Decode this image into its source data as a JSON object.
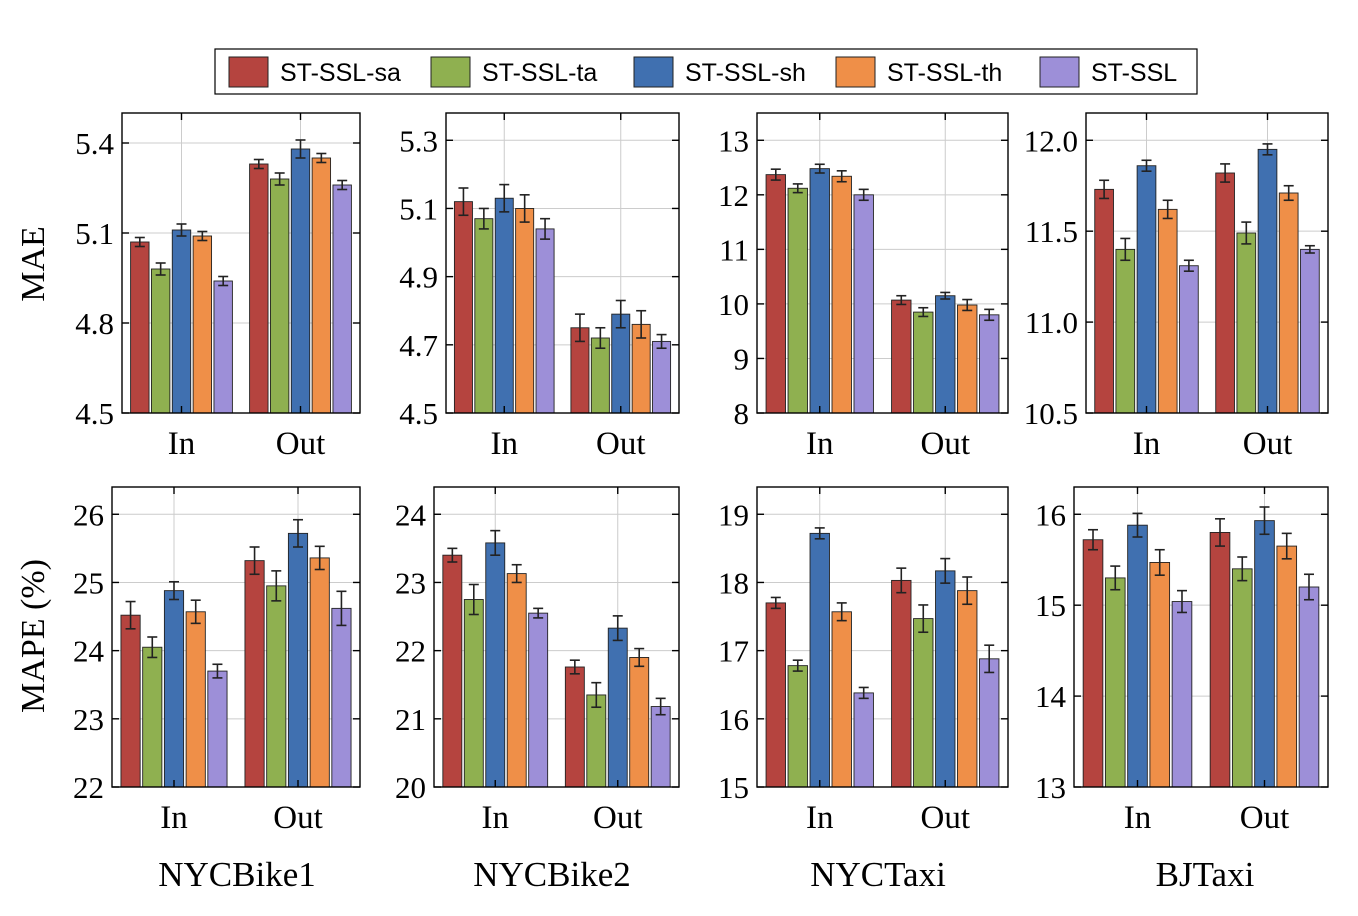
{
  "legend": {
    "entries": [
      {
        "name": "ST-SSL-sa",
        "color": "#b5443f"
      },
      {
        "name": "ST-SSL-ta",
        "color": "#8fb050"
      },
      {
        "name": "ST-SSL-sh",
        "color": "#4070b0"
      },
      {
        "name": "ST-SSL-th",
        "color": "#ef8f48"
      },
      {
        "name": "ST-SSL",
        "color": "#9d8fd8"
      }
    ]
  },
  "row_labels": [
    "MAE",
    "MAPE (%)"
  ],
  "dataset_labels": [
    "NYCBike1",
    "NYCBike2",
    "NYCTaxi",
    "BJTaxi"
  ],
  "chart_data": [
    {
      "type": "bar",
      "dataset": "NYCBike1",
      "ylabel": "MAE",
      "categories": [
        "In",
        "Out"
      ],
      "ylim": [
        4.5,
        5.5
      ],
      "yticks": [
        "4.5",
        "4.8",
        "5.1",
        "5.4"
      ],
      "grid": true,
      "series": [
        {
          "name": "ST-SSL-sa",
          "values": [
            5.07,
            5.33
          ],
          "errors": [
            0.015,
            0.015
          ]
        },
        {
          "name": "ST-SSL-ta",
          "values": [
            4.98,
            5.28
          ],
          "errors": [
            0.02,
            0.02
          ]
        },
        {
          "name": "ST-SSL-sh",
          "values": [
            5.11,
            5.38
          ],
          "errors": [
            0.02,
            0.03
          ]
        },
        {
          "name": "ST-SSL-th",
          "values": [
            5.09,
            5.35
          ],
          "errors": [
            0.015,
            0.015
          ]
        },
        {
          "name": "ST-SSL",
          "values": [
            4.94,
            5.26
          ],
          "errors": [
            0.015,
            0.015
          ]
        }
      ]
    },
    {
      "type": "bar",
      "dataset": "NYCBike2",
      "categories": [
        "In",
        "Out"
      ],
      "ylim": [
        4.5,
        5.38
      ],
      "yticks": [
        "4.5",
        "4.7",
        "4.9",
        "5.1",
        "5.3"
      ],
      "grid": true,
      "series": [
        {
          "name": "ST-SSL-sa",
          "values": [
            5.12,
            4.75
          ],
          "errors": [
            0.04,
            0.04
          ]
        },
        {
          "name": "ST-SSL-ta",
          "values": [
            5.07,
            4.72
          ],
          "errors": [
            0.03,
            0.03
          ]
        },
        {
          "name": "ST-SSL-sh",
          "values": [
            5.13,
            4.79
          ],
          "errors": [
            0.04,
            0.04
          ]
        },
        {
          "name": "ST-SSL-th",
          "values": [
            5.1,
            4.76
          ],
          "errors": [
            0.04,
            0.04
          ]
        },
        {
          "name": "ST-SSL",
          "values": [
            5.04,
            4.71
          ],
          "errors": [
            0.03,
            0.02
          ]
        }
      ]
    },
    {
      "type": "bar",
      "dataset": "NYCTaxi",
      "categories": [
        "In",
        "Out"
      ],
      "ylim": [
        8,
        13.5
      ],
      "yticks": [
        "8",
        "9",
        "10",
        "11",
        "12",
        "13"
      ],
      "grid": true,
      "series": [
        {
          "name": "ST-SSL-sa",
          "values": [
            12.37,
            10.07
          ],
          "errors": [
            0.1,
            0.08
          ]
        },
        {
          "name": "ST-SSL-ta",
          "values": [
            12.12,
            9.85
          ],
          "errors": [
            0.08,
            0.08
          ]
        },
        {
          "name": "ST-SSL-sh",
          "values": [
            12.48,
            10.15
          ],
          "errors": [
            0.08,
            0.06
          ]
        },
        {
          "name": "ST-SSL-th",
          "values": [
            12.34,
            9.98
          ],
          "errors": [
            0.1,
            0.1
          ]
        },
        {
          "name": "ST-SSL",
          "values": [
            12.0,
            9.8
          ],
          "errors": [
            0.1,
            0.1
          ]
        }
      ]
    },
    {
      "type": "bar",
      "dataset": "BJTaxi",
      "categories": [
        "In",
        "Out"
      ],
      "ylim": [
        10.5,
        12.15
      ],
      "yticks": [
        "10.5",
        "11.0",
        "11.5",
        "12.0"
      ],
      "grid": true,
      "series": [
        {
          "name": "ST-SSL-sa",
          "values": [
            11.73,
            11.82
          ],
          "errors": [
            0.05,
            0.05
          ]
        },
        {
          "name": "ST-SSL-ta",
          "values": [
            11.4,
            11.49
          ],
          "errors": [
            0.06,
            0.06
          ]
        },
        {
          "name": "ST-SSL-sh",
          "values": [
            11.86,
            11.95
          ],
          "errors": [
            0.03,
            0.03
          ]
        },
        {
          "name": "ST-SSL-th",
          "values": [
            11.62,
            11.71
          ],
          "errors": [
            0.05,
            0.04
          ]
        },
        {
          "name": "ST-SSL",
          "values": [
            11.31,
            11.4
          ],
          "errors": [
            0.03,
            0.02
          ]
        }
      ]
    },
    {
      "type": "bar",
      "dataset": "NYCBike1",
      "ylabel": "MAPE (%)",
      "categories": [
        "In",
        "Out"
      ],
      "ylim": [
        22,
        26.4
      ],
      "yticks": [
        "22",
        "23",
        "24",
        "25",
        "26"
      ],
      "grid": true,
      "series": [
        {
          "name": "ST-SSL-sa",
          "values": [
            24.52,
            25.32
          ],
          "errors": [
            0.2,
            0.2
          ]
        },
        {
          "name": "ST-SSL-ta",
          "values": [
            24.05,
            24.95
          ],
          "errors": [
            0.15,
            0.22
          ]
        },
        {
          "name": "ST-SSL-sh",
          "values": [
            24.88,
            25.72
          ],
          "errors": [
            0.13,
            0.2
          ]
        },
        {
          "name": "ST-SSL-th",
          "values": [
            24.57,
            25.36
          ],
          "errors": [
            0.17,
            0.17
          ]
        },
        {
          "name": "ST-SSL",
          "values": [
            23.7,
            24.62
          ],
          "errors": [
            0.1,
            0.25
          ]
        }
      ]
    },
    {
      "type": "bar",
      "dataset": "NYCBike2",
      "categories": [
        "In",
        "Out"
      ],
      "ylim": [
        20,
        24.4
      ],
      "yticks": [
        "20",
        "21",
        "22",
        "23",
        "24"
      ],
      "grid": true,
      "series": [
        {
          "name": "ST-SSL-sa",
          "values": [
            23.4,
            21.76
          ],
          "errors": [
            0.1,
            0.1
          ]
        },
        {
          "name": "ST-SSL-ta",
          "values": [
            22.75,
            21.35
          ],
          "errors": [
            0.22,
            0.18
          ]
        },
        {
          "name": "ST-SSL-sh",
          "values": [
            23.58,
            22.33
          ],
          "errors": [
            0.18,
            0.18
          ]
        },
        {
          "name": "ST-SSL-th",
          "values": [
            23.13,
            21.9
          ],
          "errors": [
            0.13,
            0.13
          ]
        },
        {
          "name": "ST-SSL",
          "values": [
            22.55,
            21.18
          ],
          "errors": [
            0.07,
            0.12
          ]
        }
      ]
    },
    {
      "type": "bar",
      "dataset": "NYCTaxi",
      "categories": [
        "In",
        "Out"
      ],
      "ylim": [
        15,
        19.4
      ],
      "yticks": [
        "15",
        "16",
        "17",
        "18",
        "19"
      ],
      "grid": true,
      "series": [
        {
          "name": "ST-SSL-sa",
          "values": [
            17.7,
            18.03
          ],
          "errors": [
            0.08,
            0.18
          ]
        },
        {
          "name": "ST-SSL-ta",
          "values": [
            16.78,
            17.47
          ],
          "errors": [
            0.08,
            0.2
          ]
        },
        {
          "name": "ST-SSL-sh",
          "values": [
            18.72,
            18.17
          ],
          "errors": [
            0.08,
            0.18
          ]
        },
        {
          "name": "ST-SSL-th",
          "values": [
            17.57,
            17.88
          ],
          "errors": [
            0.13,
            0.2
          ]
        },
        {
          "name": "ST-SSL",
          "values": [
            16.38,
            16.88
          ],
          "errors": [
            0.08,
            0.2
          ]
        }
      ]
    },
    {
      "type": "bar",
      "dataset": "BJTaxi",
      "categories": [
        "In",
        "Out"
      ],
      "ylim": [
        13,
        16.3
      ],
      "yticks": [
        "13",
        "14",
        "15",
        "16"
      ],
      "grid": true,
      "series": [
        {
          "name": "ST-SSL-sa",
          "values": [
            15.72,
            15.8
          ],
          "errors": [
            0.11,
            0.15
          ]
        },
        {
          "name": "ST-SSL-ta",
          "values": [
            15.3,
            15.4
          ],
          "errors": [
            0.13,
            0.13
          ]
        },
        {
          "name": "ST-SSL-sh",
          "values": [
            15.88,
            15.93
          ],
          "errors": [
            0.13,
            0.15
          ]
        },
        {
          "name": "ST-SSL-th",
          "values": [
            15.47,
            15.65
          ],
          "errors": [
            0.14,
            0.14
          ]
        },
        {
          "name": "ST-SSL",
          "values": [
            15.04,
            15.2
          ],
          "errors": [
            0.12,
            0.14
          ]
        }
      ]
    }
  ]
}
